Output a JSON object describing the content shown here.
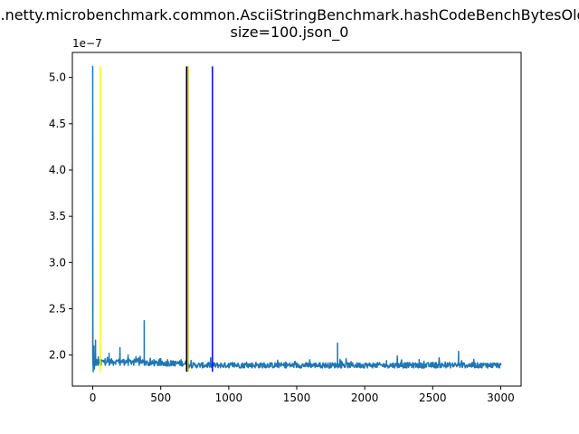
{
  "chart_data": {
    "type": "line",
    "title_lines": [
      "io.netty.microbenchmark.common.AsciiStringBenchmark.hashCodeBenchBytesOld-",
      "size=100.json_0"
    ],
    "xlabel": "",
    "ylabel": "",
    "y_offset_label": "1e−7",
    "xlim": [
      -150,
      3150
    ],
    "ylim": [
      1.665e-07,
      5.27e-07
    ],
    "x_ticks": [
      0,
      500,
      1000,
      1500,
      2000,
      2500,
      3000
    ],
    "x_tick_labels": [
      "0",
      "500",
      "1000",
      "1500",
      "2000",
      "2500",
      "3000"
    ],
    "y_ticks": [
      2e-07,
      2.5e-07,
      3e-07,
      3.5e-07,
      4e-07,
      4.5e-07,
      5e-07
    ],
    "y_tick_labels": [
      "2.0",
      "2.5",
      "3.0",
      "3.5",
      "4.0",
      "4.5",
      "5.0"
    ],
    "grid": false,
    "series": [
      {
        "color": "#1f77b4",
        "baseline": 1.89e-07,
        "x_range": [
          0,
          3000
        ],
        "points": [
          [
            0,
            5.12e-07
          ],
          [
            3,
            1.82e-07
          ],
          [
            8,
            2.1e-07
          ],
          [
            12,
            1.85e-07
          ],
          [
            20,
            2.16e-07
          ],
          [
            28,
            1.9e-07
          ],
          [
            40,
            1.98e-07
          ],
          [
            60,
            1.92e-07
          ],
          [
            90,
            1.96e-07
          ],
          [
            120,
            2.02e-07
          ],
          [
            150,
            1.93e-07
          ],
          [
            200,
            2.08e-07
          ],
          [
            230,
            1.95e-07
          ],
          [
            260,
            2e-07
          ],
          [
            300,
            1.94e-07
          ],
          [
            340,
            1.97e-07
          ],
          [
            378,
            2.37e-07
          ],
          [
            390,
            1.92e-07
          ],
          [
            450,
            1.95e-07
          ],
          [
            500,
            1.96e-07
          ],
          [
            550,
            1.95e-07
          ],
          [
            600,
            1.93e-07
          ],
          [
            650,
            1.95e-07
          ],
          [
            700,
            1.92e-07
          ],
          [
            800,
            1.91e-07
          ],
          [
            900,
            1.9e-07
          ],
          [
            1000,
            1.91e-07
          ],
          [
            1200,
            1.92e-07
          ],
          [
            1500,
            1.91e-07
          ],
          [
            1800,
            2.13e-07
          ],
          [
            1900,
            1.93e-07
          ],
          [
            2000,
            1.91e-07
          ],
          [
            2160,
            1.94e-07
          ],
          [
            2240,
            1.99e-07
          ],
          [
            2400,
            1.95e-07
          ],
          [
            2520,
            1.92e-07
          ],
          [
            2690,
            2.04e-07
          ],
          [
            2800,
            1.92e-07
          ],
          [
            2900,
            1.91e-07
          ],
          [
            3000,
            1.9e-07
          ]
        ]
      }
    ],
    "vlines": [
      {
        "x": 55,
        "color": "#ffff00",
        "ymin": 1.82e-07,
        "ymax": 5.12e-07
      },
      {
        "x": 690,
        "color": "#000000",
        "ymin": 1.82e-07,
        "ymax": 5.12e-07
      },
      {
        "x": 700,
        "color": "#c8b400",
        "ymin": 1.82e-07,
        "ymax": 5.12e-07
      },
      {
        "x": 880,
        "color": "#0000ff",
        "ymin": 1.82e-07,
        "ymax": 5.12e-07
      }
    ]
  }
}
